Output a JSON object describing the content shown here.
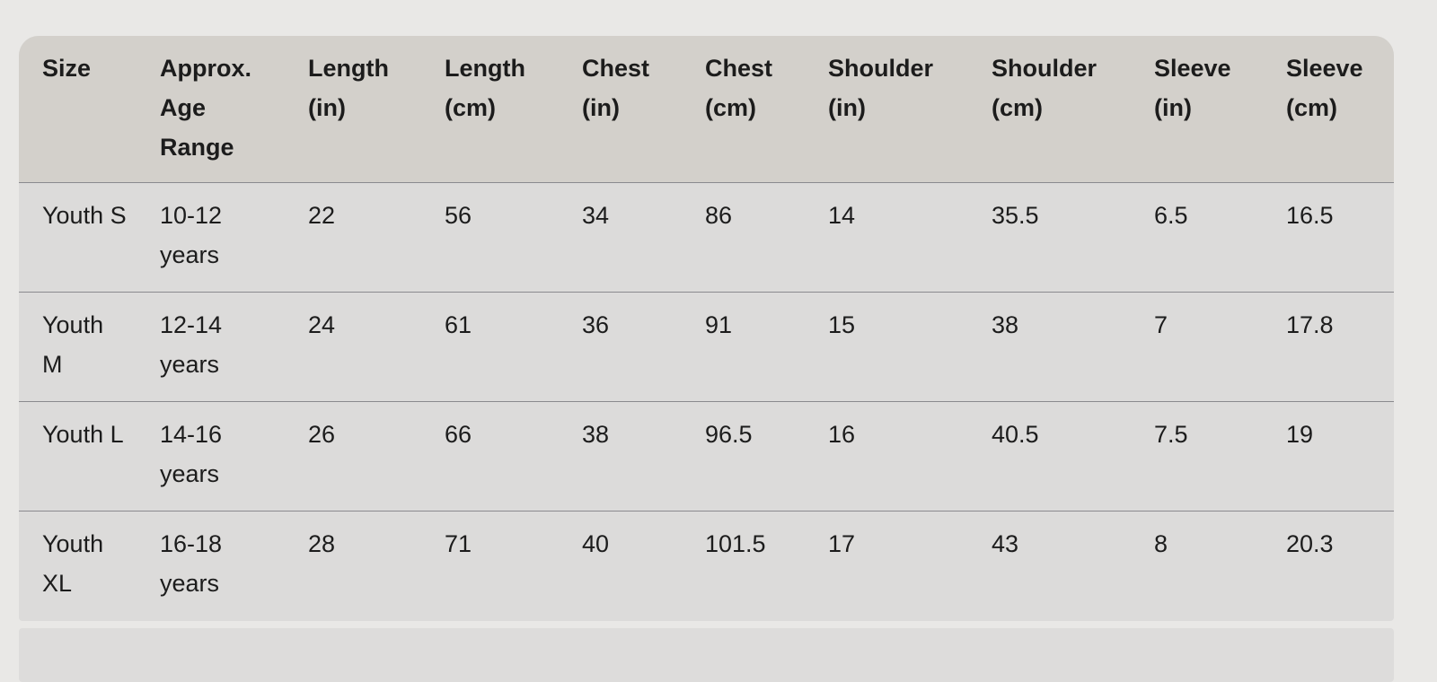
{
  "table": {
    "headers": [
      "Size",
      "Approx. Age Range",
      "Length (in)",
      "Length (cm)",
      "Chest (in)",
      "Chest (cm)",
      "Shoulder (in)",
      "Shoulder (cm)",
      "Sleeve (in)",
      "Sleeve (cm)"
    ],
    "rows": [
      [
        "Youth S",
        "10-12 years",
        "22",
        "56",
        "34",
        "86",
        "14",
        "35.5",
        "6.5",
        "16.5"
      ],
      [
        "Youth M",
        "12-14 years",
        "24",
        "61",
        "36",
        "91",
        "15",
        "38",
        "7",
        "17.8"
      ],
      [
        "Youth L",
        "14-16 years",
        "26",
        "66",
        "38",
        "96.5",
        "16",
        "40.5",
        "7.5",
        "19"
      ],
      [
        "Youth XL",
        "16-18 years",
        "28",
        "71",
        "40",
        "101.5",
        "17",
        "43",
        "8",
        "20.3"
      ]
    ]
  },
  "colors": {
    "page_bg": "#e9e8e6",
    "header_bg": "#d3d0cb",
    "body_bg": "#dcdbda"
  }
}
